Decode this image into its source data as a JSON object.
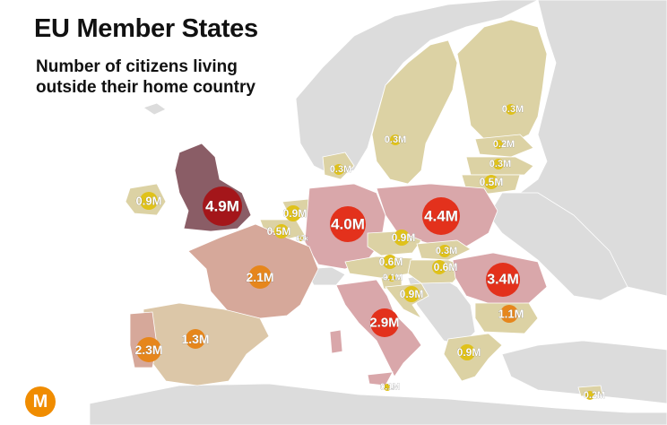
{
  "title": "EU Member States",
  "subtitle_line1": "Number of citizens living",
  "subtitle_line2": "outside their home country",
  "logo_letter": "M",
  "colors": {
    "sea": "#ffffff",
    "non_eu_land": "#dcdcdc",
    "eu_land_low": "#dcd2a4",
    "eu_land_mid": "#d6a89a",
    "eu_land_high": "#d9a7aa",
    "uk_land": "#8a5d66",
    "bubble_small": "#e0c21a",
    "bubble_medium": "#e6861c",
    "bubble_large": "#e3311c",
    "bubble_largest": "#a4161a",
    "logo": "#f08c00"
  },
  "countries": [
    {
      "name": "United Kingdom",
      "value_label": "4.9M",
      "value_millions": 4.9
    },
    {
      "name": "Ireland",
      "value_label": "0.9M",
      "value_millions": 0.9
    },
    {
      "name": "Germany",
      "value_label": "4.0M",
      "value_millions": 4.0
    },
    {
      "name": "Poland",
      "value_label": "4.4M",
      "value_millions": 4.4
    },
    {
      "name": "Romania",
      "value_label": "3.4M",
      "value_millions": 3.4
    },
    {
      "name": "Italy",
      "value_label": "2.9M",
      "value_millions": 2.9
    },
    {
      "name": "Portugal",
      "value_label": "2.3M",
      "value_millions": 2.3
    },
    {
      "name": "France",
      "value_label": "2.1M",
      "value_millions": 2.1
    },
    {
      "name": "Spain",
      "value_label": "1.3M",
      "value_millions": 1.3
    },
    {
      "name": "Bulgaria",
      "value_label": "1.1M",
      "value_millions": 1.1
    },
    {
      "name": "Netherlands",
      "value_label": "0.9M",
      "value_millions": 0.9
    },
    {
      "name": "Czechia",
      "value_label": "0.9M",
      "value_millions": 0.9
    },
    {
      "name": "Croatia",
      "value_label": "0.9M",
      "value_millions": 0.9
    },
    {
      "name": "Greece",
      "value_label": "0.9M",
      "value_millions": 0.9
    },
    {
      "name": "Austria",
      "value_label": "0.6M",
      "value_millions": 0.6
    },
    {
      "name": "Hungary",
      "value_label": "0.6M",
      "value_millions": 0.6
    },
    {
      "name": "Belgium",
      "value_label": "0.5M",
      "value_millions": 0.5
    },
    {
      "name": "Lithuania",
      "value_label": "0.5M",
      "value_millions": 0.5
    },
    {
      "name": "Slovakia",
      "value_label": "0.3M",
      "value_millions": 0.3
    },
    {
      "name": "Sweden",
      "value_label": "0.3M",
      "value_millions": 0.3
    },
    {
      "name": "Finland",
      "value_label": "0.3M",
      "value_millions": 0.3
    },
    {
      "name": "Denmark",
      "value_label": "0.3M",
      "value_millions": 0.3
    },
    {
      "name": "Latvia",
      "value_label": "0.3M",
      "value_millions": 0.3
    },
    {
      "name": "Estonia",
      "value_label": "0.2M",
      "value_millions": 0.2
    },
    {
      "name": "Cyprus",
      "value_label": "0.2M",
      "value_millions": 0.2
    },
    {
      "name": "Slovenia",
      "value_label": "0.1M",
      "value_millions": 0.1
    },
    {
      "name": "Malta",
      "value_label": "0.1M",
      "value_millions": 0.1
    },
    {
      "name": "Luxembourg",
      "value_label": "60k",
      "value_millions": 0.06
    }
  ]
}
